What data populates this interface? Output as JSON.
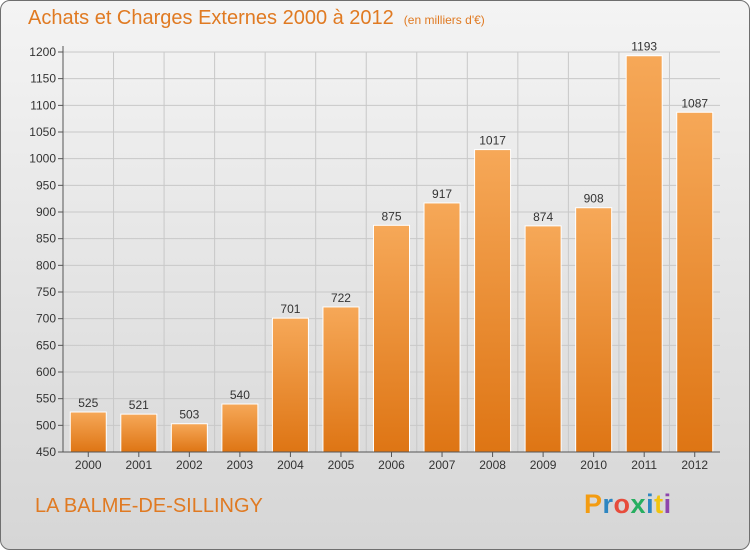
{
  "header": {
    "title": "Achats et Charges Externes 2000 à 2012",
    "unit": "(en milliers d'€)"
  },
  "footer": {
    "location": "LA BALME-DE-SILLINGY",
    "logo_text": "Proxiti",
    "logo_colors": [
      "#f39c12",
      "#2e86c1",
      "#e74c3c",
      "#27ae60",
      "#2e86c1",
      "#f1c40f",
      "#8e44ad"
    ]
  },
  "colors": {
    "bar_top": "#f6a858",
    "bar_bottom": "#de7514",
    "accent": "#e07a22",
    "grid": "#c8c8c8"
  },
  "chart_data": {
    "type": "bar",
    "title": "Achats et Charges Externes 2000 à 2012",
    "subtitle": "(en milliers d'€)",
    "xlabel": "",
    "ylabel": "",
    "categories": [
      "2000",
      "2001",
      "2002",
      "2003",
      "2004",
      "2005",
      "2006",
      "2007",
      "2008",
      "2009",
      "2010",
      "2011",
      "2012"
    ],
    "values": [
      525,
      521,
      503,
      540,
      701,
      722,
      875,
      917,
      1017,
      874,
      908,
      1193,
      1087
    ],
    "ylim": [
      450,
      1200
    ],
    "yticks": [
      450,
      500,
      550,
      600,
      650,
      700,
      750,
      800,
      850,
      900,
      950,
      1000,
      1050,
      1100,
      1150,
      1200
    ],
    "grid": true,
    "legend": "none"
  }
}
